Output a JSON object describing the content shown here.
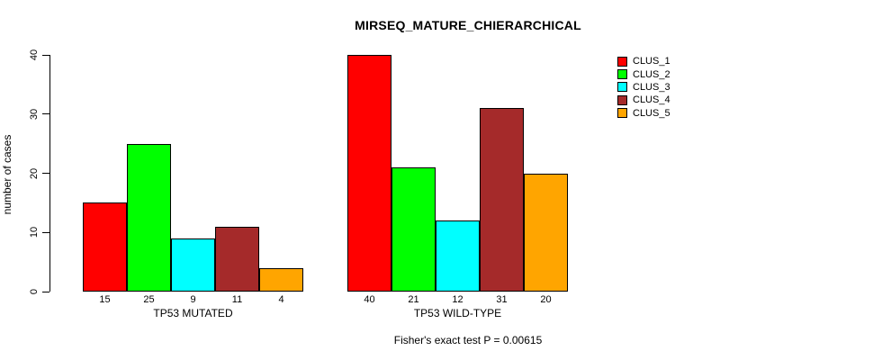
{
  "chart_data": {
    "type": "bar",
    "title": "MIRSEQ_MATURE_CHIERARCHICAL",
    "subtitle": "Fisher's exact test P = 0.00615",
    "ylabel": "number of cases",
    "xlabel": "",
    "ylim": [
      0,
      40
    ],
    "yticks": [
      0,
      10,
      20,
      30,
      40
    ],
    "grid": false,
    "legend_position": "top-right",
    "categories": [
      "TP53 MUTATED",
      "TP53 WILD-TYPE"
    ],
    "series": [
      {
        "name": "CLUS_1",
        "color": "#ff0000",
        "values": [
          15,
          40
        ]
      },
      {
        "name": "CLUS_2",
        "color": "#00ff00",
        "values": [
          25,
          21
        ]
      },
      {
        "name": "CLUS_3",
        "color": "#00ffff",
        "values": [
          9,
          12
        ]
      },
      {
        "name": "CLUS_4",
        "color": "#a52a2a",
        "values": [
          11,
          31
        ]
      },
      {
        "name": "CLUS_5",
        "color": "#ffa500",
        "values": [
          4,
          20
        ]
      }
    ],
    "bar_value_labels": [
      [
        15,
        25,
        9,
        11,
        4
      ],
      [
        40,
        21,
        12,
        31,
        20
      ]
    ]
  }
}
